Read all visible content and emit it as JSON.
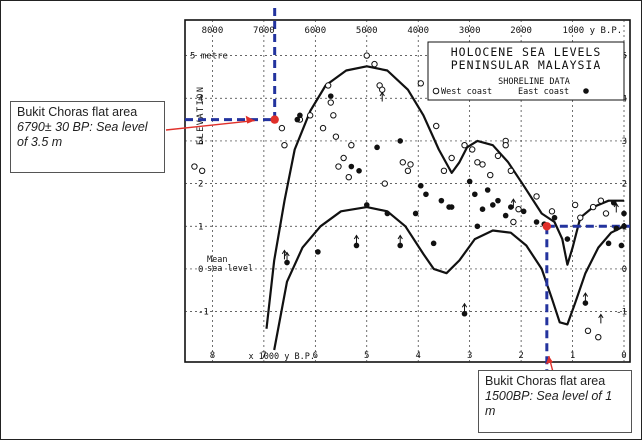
{
  "chart_data": {
    "type": "scatter",
    "title": "HOLOCENE SEA LEVELS",
    "subtitle": "PENINSULAR MALAYSIA",
    "legend_title": "SHORELINE   DATA",
    "legend": [
      {
        "name": "West coast",
        "marker": "open-circle"
      },
      {
        "name": "East coast",
        "marker": "filled-circle"
      }
    ],
    "legend_placement": "top-right",
    "ylabel": "ELEVATION",
    "top_axis_ticks": [
      "8000",
      "7000",
      "6000",
      "5000",
      "4000",
      "3000",
      "2000",
      "1000 y  B.P."
    ],
    "bottom_axis_ticks": [
      "8",
      "7",
      "6",
      "5",
      "4",
      "3",
      "2",
      "1",
      "0"
    ],
    "bottom_axis_label": "x 1000 y   B.P.",
    "y_ticks_left": [
      "5 metre",
      "4",
      "3",
      "2",
      "1",
      "0",
      "-1"
    ],
    "y_ticks_right": [
      "5",
      "4",
      "3",
      "2",
      "1",
      "0",
      "-1"
    ],
    "xlim": [
      8.3,
      0
    ],
    "ylim": [
      -1.9,
      5.6
    ],
    "mean_sea_level_label": [
      "Mean",
      "sea level"
    ],
    "grid": true,
    "west_coast": [
      [
        8.35,
        2.4
      ],
      [
        8.2,
        2.3
      ],
      [
        6.65,
        3.3
      ],
      [
        6.6,
        2.9
      ],
      [
        6.3,
        3.5
      ],
      [
        6.1,
        3.6
      ],
      [
        5.85,
        3.3
      ],
      [
        5.75,
        4.3
      ],
      [
        5.7,
        3.9
      ],
      [
        5.65,
        3.6
      ],
      [
        5.6,
        3.1
      ],
      [
        5.55,
        2.4
      ],
      [
        5.45,
        2.6
      ],
      [
        5.35,
        2.15
      ],
      [
        5.3,
        2.9
      ],
      [
        5.0,
        5.0
      ],
      [
        4.85,
        4.8
      ],
      [
        4.75,
        4.3
      ],
      [
        4.7,
        4.2
      ],
      [
        4.65,
        2.0
      ],
      [
        4.3,
        2.5
      ],
      [
        4.2,
        2.3
      ],
      [
        4.15,
        2.45
      ],
      [
        3.95,
        4.35
      ],
      [
        3.65,
        3.35
      ],
      [
        3.5,
        2.3
      ],
      [
        3.35,
        2.6
      ],
      [
        3.1,
        2.9
      ],
      [
        2.95,
        2.8
      ],
      [
        2.85,
        2.5
      ],
      [
        2.75,
        2.45
      ],
      [
        2.6,
        2.2
      ],
      [
        2.45,
        2.65
      ],
      [
        2.3,
        3.0
      ],
      [
        2.3,
        2.9
      ],
      [
        2.2,
        2.3
      ],
      [
        2.15,
        1.1
      ],
      [
        2.05,
        1.4
      ],
      [
        1.7,
        1.7
      ],
      [
        1.4,
        1.35
      ],
      [
        0.95,
        1.5
      ],
      [
        0.85,
        1.2
      ],
      [
        0.6,
        1.45
      ],
      [
        0.45,
        1.6
      ],
      [
        0.35,
        1.3
      ],
      [
        0.5,
        -1.6
      ],
      [
        0.7,
        -1.45
      ]
    ],
    "east_coast": [
      [
        6.35,
        3.5
      ],
      [
        6.3,
        3.6
      ],
      [
        5.95,
        0.4
      ],
      [
        5.7,
        4.05
      ],
      [
        5.3,
        2.4
      ],
      [
        5.15,
        2.3
      ],
      [
        5.0,
        1.5
      ],
      [
        4.8,
        2.85
      ],
      [
        4.6,
        1.3
      ],
      [
        4.35,
        3.0
      ],
      [
        4.05,
        1.3
      ],
      [
        3.95,
        1.95
      ],
      [
        3.85,
        1.75
      ],
      [
        3.7,
        0.6
      ],
      [
        3.55,
        1.6
      ],
      [
        3.4,
        1.45
      ],
      [
        3.35,
        1.45
      ],
      [
        3.0,
        2.05
      ],
      [
        2.9,
        1.75
      ],
      [
        2.85,
        1.0
      ],
      [
        2.75,
        1.4
      ],
      [
        2.65,
        1.85
      ],
      [
        2.55,
        1.5
      ],
      [
        2.45,
        1.6
      ],
      [
        2.3,
        1.25
      ],
      [
        2.2,
        1.45
      ],
      [
        1.95,
        1.35
      ],
      [
        1.7,
        1.1
      ],
      [
        1.55,
        1.05
      ],
      [
        1.35,
        1.2
      ],
      [
        1.1,
        0.7
      ],
      [
        0.75,
        -0.8
      ],
      [
        0.2,
        1.55
      ],
      [
        0.15,
        0.95
      ],
      [
        0.05,
        0.55
      ],
      [
        0.0,
        1.3
      ],
      [
        0.3,
        0.6
      ],
      [
        0.0,
        1.0
      ],
      [
        3.1,
        -1.05
      ],
      [
        6.55,
        0.15
      ],
      [
        5.2,
        0.55
      ],
      [
        4.35,
        0.55
      ]
    ],
    "west_coast_arrows": [
      [
        6.6,
        0.2
      ],
      [
        4.7,
        3.9
      ],
      [
        2.15,
        1.4
      ]
    ],
    "east_coast_arrows": [
      [
        5.2,
        0.55
      ],
      [
        4.35,
        0.55
      ],
      [
        3.1,
        -1.05
      ],
      [
        0.75,
        -0.8
      ],
      [
        0.45,
        -1.3
      ],
      [
        0.15,
        1.3
      ],
      [
        6.55,
        0.15
      ]
    ],
    "highlight_points": [
      {
        "x": 6.79,
        "y": 3.5,
        "color": "#e0302a"
      },
      {
        "x": 1.5,
        "y": 1.0,
        "color": "#e0302a"
      }
    ],
    "upper_envelope": [
      [
        6.95,
        -1.4
      ],
      [
        6.8,
        0.2
      ],
      [
        6.6,
        1.6
      ],
      [
        6.4,
        2.8
      ],
      [
        6.1,
        3.7
      ],
      [
        5.8,
        4.3
      ],
      [
        5.4,
        4.65
      ],
      [
        5.0,
        4.75
      ],
      [
        4.6,
        4.65
      ],
      [
        4.2,
        4.2
      ],
      [
        3.9,
        3.6
      ],
      [
        3.6,
        2.8
      ],
      [
        3.35,
        2.25
      ],
      [
        3.2,
        2.5
      ],
      [
        3.05,
        2.85
      ],
      [
        2.85,
        3.0
      ],
      [
        2.55,
        2.9
      ],
      [
        2.25,
        2.5
      ],
      [
        1.95,
        1.95
      ],
      [
        1.6,
        1.3
      ],
      [
        1.35,
        1.1
      ],
      [
        1.2,
        0.7
      ],
      [
        1.1,
        0.1
      ],
      [
        1.0,
        0.5
      ],
      [
        0.85,
        1.2
      ],
      [
        0.6,
        1.45
      ],
      [
        0.3,
        1.6
      ],
      [
        0.0,
        1.6
      ]
    ],
    "lower_envelope": [
      [
        6.8,
        -1.9
      ],
      [
        6.55,
        -0.3
      ],
      [
        6.25,
        0.5
      ],
      [
        5.9,
        1.0
      ],
      [
        5.5,
        1.35
      ],
      [
        5.0,
        1.45
      ],
      [
        4.6,
        1.35
      ],
      [
        4.25,
        1.0
      ],
      [
        3.9,
        0.35
      ],
      [
        3.7,
        0.0
      ],
      [
        3.45,
        -0.1
      ],
      [
        3.2,
        0.2
      ],
      [
        2.9,
        0.7
      ],
      [
        2.55,
        0.9
      ],
      [
        2.2,
        0.85
      ],
      [
        1.9,
        0.55
      ],
      [
        1.6,
        0.0
      ],
      [
        1.4,
        -0.7
      ],
      [
        1.25,
        -1.25
      ],
      [
        1.1,
        -1.3
      ],
      [
        0.95,
        -0.8
      ],
      [
        0.75,
        -0.1
      ],
      [
        0.5,
        0.5
      ],
      [
        0.25,
        0.85
      ],
      [
        0.0,
        1.0
      ]
    ],
    "guide_lines_color": "#23339e"
  },
  "callouts": {
    "left": {
      "title": "Bukit Choras flat area",
      "subtitle": "6790± 30 BP: Sea level of 3.5 m"
    },
    "right": {
      "title": "Bukit Choras flat area",
      "subtitle": "1500BP: Sea level of 1 m"
    }
  },
  "arrow_color": "#e0302a"
}
